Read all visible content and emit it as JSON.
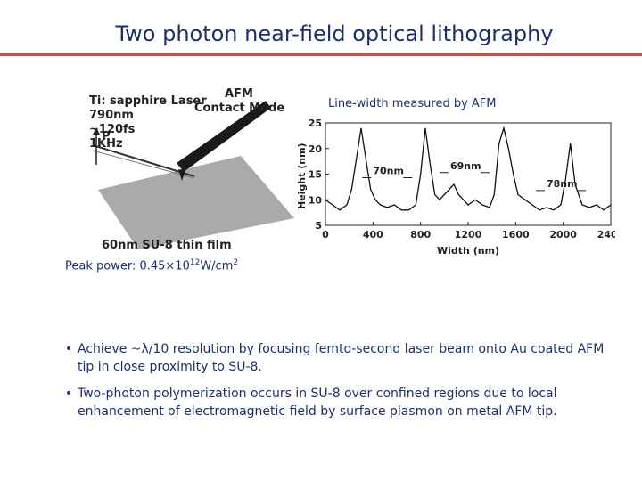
{
  "title": "Two photon near-field optical lithography",
  "schematic": {
    "laser_lines": [
      "Ti: sapphire Laser",
      "790nm",
      "~120fs",
      "1KHz"
    ],
    "power_label": "P",
    "afm_lines": [
      "AFM",
      "Contact Mode"
    ],
    "film_label": "60nm SU-8 thin film"
  },
  "plot_caption": "Line-width measured by AFM",
  "peak_power": {
    "label": "Peak power: ",
    "value": "0.45×10",
    "exponent": "12",
    "unit": "W/cm",
    "unit_exp": "2"
  },
  "bullets": [
    "Achieve ~λ/10 resolution by focusing femto-second laser beam onto Au coated AFM tip in close proximity to SU-8.",
    "Two-photon polymerization occurs in SU-8 over confined regions due to local enhancement of electromagnetic field by surface plasmon on metal AFM tip."
  ],
  "chart_data": {
    "type": "line",
    "xlabel": "Width (nm)",
    "ylabel": "Height (nm)",
    "xlim": [
      0,
      2400
    ],
    "ylim": [
      5,
      25
    ],
    "x_ticks": [
      "0",
      "400",
      "800",
      "1200",
      "1600",
      "2000",
      "2400"
    ],
    "y_ticks": [
      "5",
      "10",
      "15",
      "20",
      "25"
    ],
    "annotations": [
      {
        "text": "70nm",
        "x": 400,
        "y": 15
      },
      {
        "text": "69nm",
        "x": 1050,
        "y": 16
      },
      {
        "text": "78nm",
        "x": 1860,
        "y": 12.5
      }
    ],
    "series": [
      {
        "x": [
          0,
          60,
          120,
          180,
          220,
          260,
          300,
          340,
          380,
          420,
          460,
          520,
          580,
          640,
          700,
          760,
          800,
          840,
          880,
          920,
          960,
          1000,
          1040,
          1080,
          1120,
          1160,
          1200,
          1260,
          1320,
          1380,
          1420,
          1460,
          1500,
          1540,
          1580,
          1620,
          1680,
          1740,
          1800,
          1860,
          1920,
          1980,
          2020,
          2060,
          2100,
          2160,
          2220,
          2280,
          2340,
          2400
        ],
        "y": [
          10,
          9,
          8,
          9,
          12,
          18,
          24,
          18,
          12,
          10,
          9,
          8.5,
          9,
          8,
          8,
          9,
          15,
          24,
          17,
          11,
          10,
          11,
          12,
          13,
          11,
          10,
          9,
          10,
          9,
          8.5,
          11,
          21,
          24,
          20,
          15,
          11,
          10,
          9,
          8,
          8.5,
          8,
          9,
          14,
          21,
          13,
          9,
          8.5,
          9,
          8,
          9
        ]
      }
    ]
  }
}
